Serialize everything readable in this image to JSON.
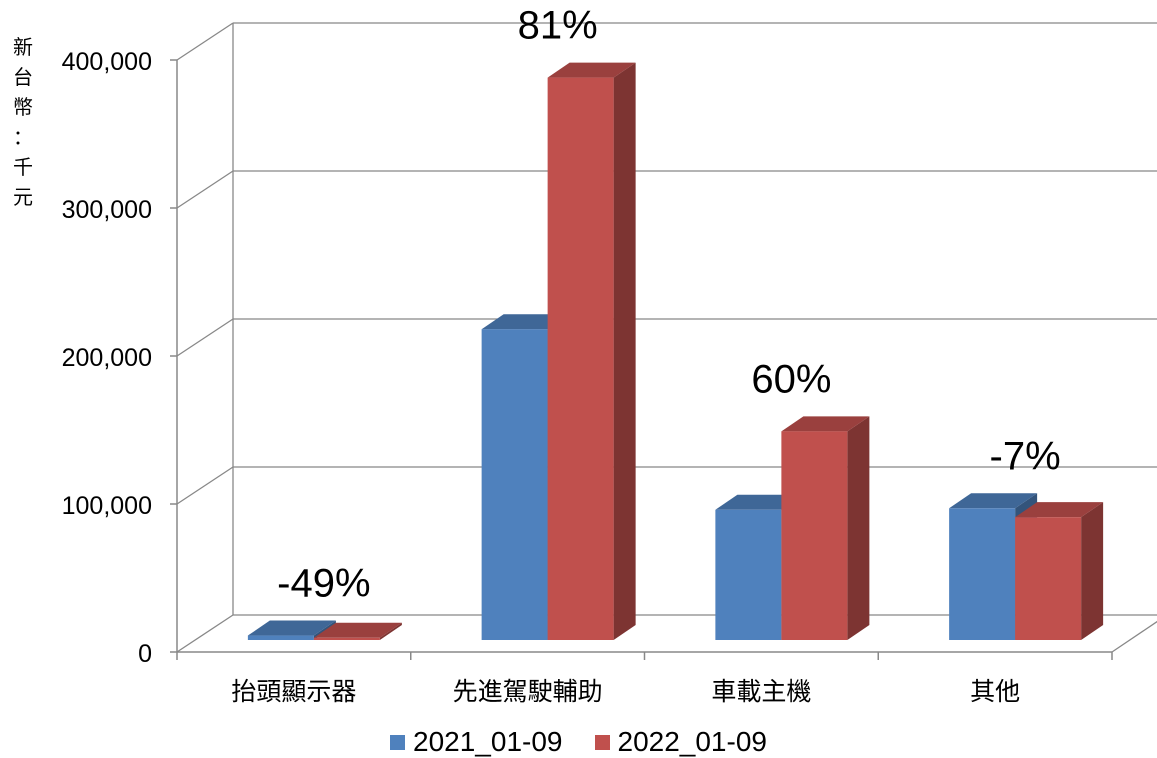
{
  "chart_data": {
    "type": "bar",
    "ylabel": "新台幣：千元",
    "categories": [
      "抬頭顯示器",
      "先進駕駛輔助",
      "車載主機",
      "其他"
    ],
    "series": [
      {
        "name": "2021_01-09",
        "color": "#4F81BD",
        "values": [
          3000,
          210000,
          88000,
          89000
        ]
      },
      {
        "name": "2022_01-09",
        "color": "#C0504D",
        "values": [
          1500,
          380000,
          141000,
          83000
        ]
      }
    ],
    "annotations": [
      "-49%",
      "81%",
      "60%",
      "-7%"
    ],
    "yticks": [
      "0",
      "100,000",
      "200,000",
      "300,000",
      "400,000"
    ],
    "ylim": [
      0,
      400000
    ],
    "grid": true,
    "legend_position": "bottom"
  }
}
